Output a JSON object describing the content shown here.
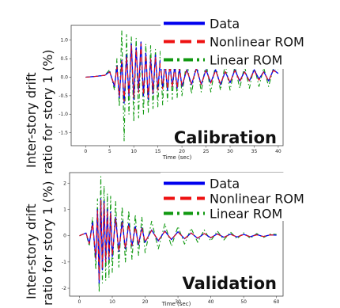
{
  "chart_data": [
    {
      "type": "line",
      "id": "top",
      "ylabel_line1": "Inter-story drift",
      "ylabel_line2": "ratio for story 1 (%)",
      "xlabel": "Time (sec)",
      "xlim": [
        -3,
        41
      ],
      "ylim": [
        -1.85,
        1.4
      ],
      "xticks": [
        0,
        5,
        10,
        15,
        20,
        25,
        30,
        35,
        40
      ],
      "yticks": [
        -1.5,
        -1.0,
        -0.5,
        0.0,
        0.5,
        1.0
      ],
      "ytick_labels": [
        "-1.5",
        "-1.0",
        "-0.5",
        "0.0",
        "0.5",
        "1.0"
      ],
      "annotation": "Calibration",
      "legend_position": "top-right",
      "series": [
        {
          "name": "Data",
          "color": "#0000ee",
          "style": "solid",
          "x": [
            0,
            2,
            4,
            5,
            6,
            6.5,
            7,
            7.5,
            8,
            8.5,
            9,
            9.5,
            10,
            10.5,
            11,
            11.5,
            12,
            12.5,
            13,
            13.5,
            14,
            14.5,
            15,
            15.5,
            16,
            16.5,
            17,
            17.5,
            18,
            18.5,
            19,
            19.5,
            20,
            21,
            22,
            23,
            24,
            25,
            26,
            27,
            28,
            29,
            30,
            31,
            32,
            33,
            34,
            35,
            36,
            37,
            38,
            39,
            40
          ],
          "y": [
            0,
            0.02,
            0.05,
            0.15,
            -0.25,
            0.3,
            -0.55,
            0.45,
            -0.7,
            0.6,
            -0.5,
            0.9,
            -0.6,
            0.8,
            -0.4,
            0.95,
            -0.5,
            0.65,
            -0.6,
            0.5,
            -0.45,
            0.6,
            -0.35,
            0.45,
            -0.3,
            0.4,
            -0.35,
            0.35,
            -0.25,
            0.3,
            -0.3,
            0.25,
            -0.25,
            0.2,
            -0.2,
            0.25,
            -0.2,
            0.2,
            -0.15,
            0.2,
            -0.2,
            0.15,
            -0.15,
            0.2,
            -0.1,
            0.15,
            -0.1,
            0.2,
            -0.05,
            0.15,
            -0.1,
            0.2,
            0.1
          ]
        },
        {
          "name": "Nonlinear ROM",
          "color": "#ee1111",
          "style": "dashed",
          "x": [
            0,
            2,
            4,
            5,
            6,
            6.5,
            7,
            7.5,
            8,
            8.5,
            9,
            9.5,
            10,
            10.5,
            11,
            11.5,
            12,
            12.5,
            13,
            13.5,
            14,
            14.5,
            15,
            15.5,
            16,
            16.5,
            17,
            17.5,
            18,
            18.5,
            19,
            19.5,
            20,
            21,
            22,
            23,
            24,
            25,
            26,
            27,
            28,
            29,
            30,
            31,
            32,
            33,
            34,
            35,
            36,
            37,
            38,
            39,
            40
          ],
          "y": [
            0,
            0.02,
            0.05,
            0.14,
            -0.22,
            0.28,
            -0.5,
            0.42,
            -0.65,
            0.55,
            -0.48,
            0.85,
            -0.55,
            0.75,
            -0.42,
            0.9,
            -0.48,
            0.6,
            -0.55,
            0.5,
            -0.42,
            0.55,
            -0.35,
            0.42,
            -0.32,
            0.38,
            -0.32,
            0.32,
            -0.28,
            0.28,
            -0.28,
            0.24,
            -0.22,
            0.2,
            -0.18,
            0.22,
            -0.2,
            0.18,
            -0.16,
            0.18,
            -0.18,
            0.15,
            -0.14,
            0.18,
            -0.12,
            0.14,
            -0.1,
            0.18,
            -0.08,
            0.14,
            -0.1,
            0.18,
            0.1
          ]
        },
        {
          "name": "Linear ROM",
          "color": "#119911",
          "style": "dashdot",
          "x": [
            0,
            2,
            4,
            5,
            6,
            6.5,
            7,
            7.5,
            8,
            8.5,
            9,
            9.5,
            10,
            10.5,
            11,
            11.5,
            12,
            12.5,
            13,
            13.5,
            14,
            14.5,
            15,
            15.5,
            16,
            16.5,
            17,
            17.5,
            18,
            18.5,
            19,
            19.5,
            20,
            21,
            22,
            23,
            24,
            25,
            26,
            27,
            28,
            29,
            30,
            31,
            32,
            33,
            34,
            35,
            36,
            37,
            38,
            39,
            40
          ],
          "y": [
            0,
            0.02,
            0.05,
            0.2,
            -0.35,
            0.5,
            -0.8,
            1.25,
            -1.72,
            1.15,
            -1.0,
            1.1,
            -1.2,
            1.05,
            -1.1,
            0.95,
            -1.0,
            0.9,
            -0.95,
            0.85,
            -0.85,
            0.75,
            -0.8,
            0.7,
            -0.75,
            0.65,
            -0.65,
            0.6,
            -0.6,
            0.55,
            -0.55,
            0.5,
            -0.5,
            0.45,
            -0.45,
            0.45,
            -0.4,
            0.4,
            -0.4,
            0.35,
            -0.35,
            0.35,
            -0.35,
            0.3,
            -0.3,
            0.3,
            -0.3,
            0.3,
            -0.25,
            0.25,
            -0.25,
            0.25,
            0.2
          ]
        }
      ]
    },
    {
      "type": "line",
      "id": "bottom",
      "ylabel_line1": "Inter-story drift",
      "ylabel_line2": "ratio for story 1 (%)",
      "xlabel": "Time (sec)",
      "xlim": [
        -3,
        62
      ],
      "ylim": [
        -2.3,
        2.4
      ],
      "xticks": [
        0,
        10,
        20,
        30,
        40,
        50,
        60
      ],
      "yticks": [
        -2,
        -1,
        0,
        1,
        2
      ],
      "ytick_labels": [
        "-2",
        "-1",
        "0",
        "1",
        "2"
      ],
      "annotation": "Validation",
      "legend_position": "top-right",
      "series": [
        {
          "name": "Data",
          "color": "#0000ee",
          "style": "solid",
          "x": [
            0,
            2,
            3,
            4,
            5,
            5.5,
            6,
            6.5,
            7,
            7.5,
            8,
            8.5,
            9,
            9.5,
            10,
            11,
            12,
            13,
            14,
            15,
            16,
            17,
            18,
            19,
            20,
            22,
            24,
            26,
            28,
            30,
            32,
            34,
            36,
            38,
            40,
            42,
            44,
            46,
            48,
            50,
            52,
            54,
            56,
            58,
            60
          ],
          "y": [
            0,
            0.1,
            -0.3,
            0.5,
            -0.9,
            1.0,
            -1.8,
            1.4,
            -1.3,
            1.3,
            -1.0,
            1.0,
            -0.9,
            0.9,
            -0.8,
            0.7,
            -0.6,
            0.55,
            -0.5,
            0.45,
            -0.4,
            0.35,
            -0.35,
            0.3,
            -0.25,
            0.22,
            -0.2,
            0.18,
            -0.15,
            0.15,
            -0.12,
            0.1,
            -0.1,
            0.08,
            -0.08,
            0.07,
            -0.06,
            0.06,
            -0.05,
            0.05,
            -0.04,
            0.04,
            -0.03,
            0.03,
            0.02
          ]
        },
        {
          "name": "Nonlinear ROM",
          "color": "#ee1111",
          "style": "dashed",
          "x": [
            0,
            2,
            3,
            4,
            5,
            5.5,
            6,
            6.5,
            7,
            7.5,
            8,
            8.5,
            9,
            9.5,
            10,
            11,
            12,
            13,
            14,
            15,
            16,
            17,
            18,
            19,
            20,
            22,
            24,
            26,
            28,
            30,
            32,
            34,
            36,
            38,
            40,
            42,
            44,
            46,
            48,
            50,
            52,
            54,
            56,
            58,
            60
          ],
          "y": [
            0,
            0.1,
            -0.3,
            0.45,
            -0.85,
            0.95,
            -1.7,
            1.35,
            -1.25,
            1.25,
            -1.0,
            0.95,
            -0.85,
            0.85,
            -0.75,
            0.65,
            -0.6,
            0.5,
            -0.48,
            0.42,
            -0.38,
            0.33,
            -0.32,
            0.28,
            -0.24,
            0.2,
            -0.18,
            0.16,
            -0.14,
            0.13,
            -0.11,
            0.1,
            -0.09,
            0.08,
            -0.07,
            0.06,
            -0.06,
            0.05,
            -0.05,
            0.04,
            -0.04,
            0.03,
            -0.03,
            0.03,
            0.02
          ]
        },
        {
          "name": "Linear ROM",
          "color": "#119911",
          "style": "dashdot",
          "x": [
            0,
            2,
            3,
            4,
            5,
            5.5,
            6,
            6.5,
            7,
            7.5,
            8,
            8.5,
            9,
            9.5,
            10,
            11,
            12,
            13,
            14,
            15,
            16,
            17,
            18,
            19,
            20,
            22,
            24,
            26,
            28,
            30,
            32,
            34,
            36,
            38,
            40,
            42,
            44,
            46,
            48,
            50,
            52,
            54,
            56,
            58,
            60
          ],
          "y": [
            0,
            0.1,
            -0.4,
            0.7,
            -1.3,
            1.4,
            -2.15,
            2.25,
            -1.8,
            1.9,
            -1.7,
            1.6,
            -1.6,
            1.5,
            -1.4,
            1.3,
            -1.2,
            1.1,
            -1.0,
            0.95,
            -0.9,
            0.8,
            -0.75,
            0.7,
            -0.65,
            0.55,
            -0.5,
            0.45,
            -0.4,
            0.35,
            -0.32,
            0.28,
            -0.25,
            0.22,
            -0.2,
            0.18,
            -0.16,
            0.14,
            -0.12,
            0.11,
            -0.1,
            0.08,
            -0.07,
            0.06,
            0.05
          ]
        }
      ]
    }
  ]
}
